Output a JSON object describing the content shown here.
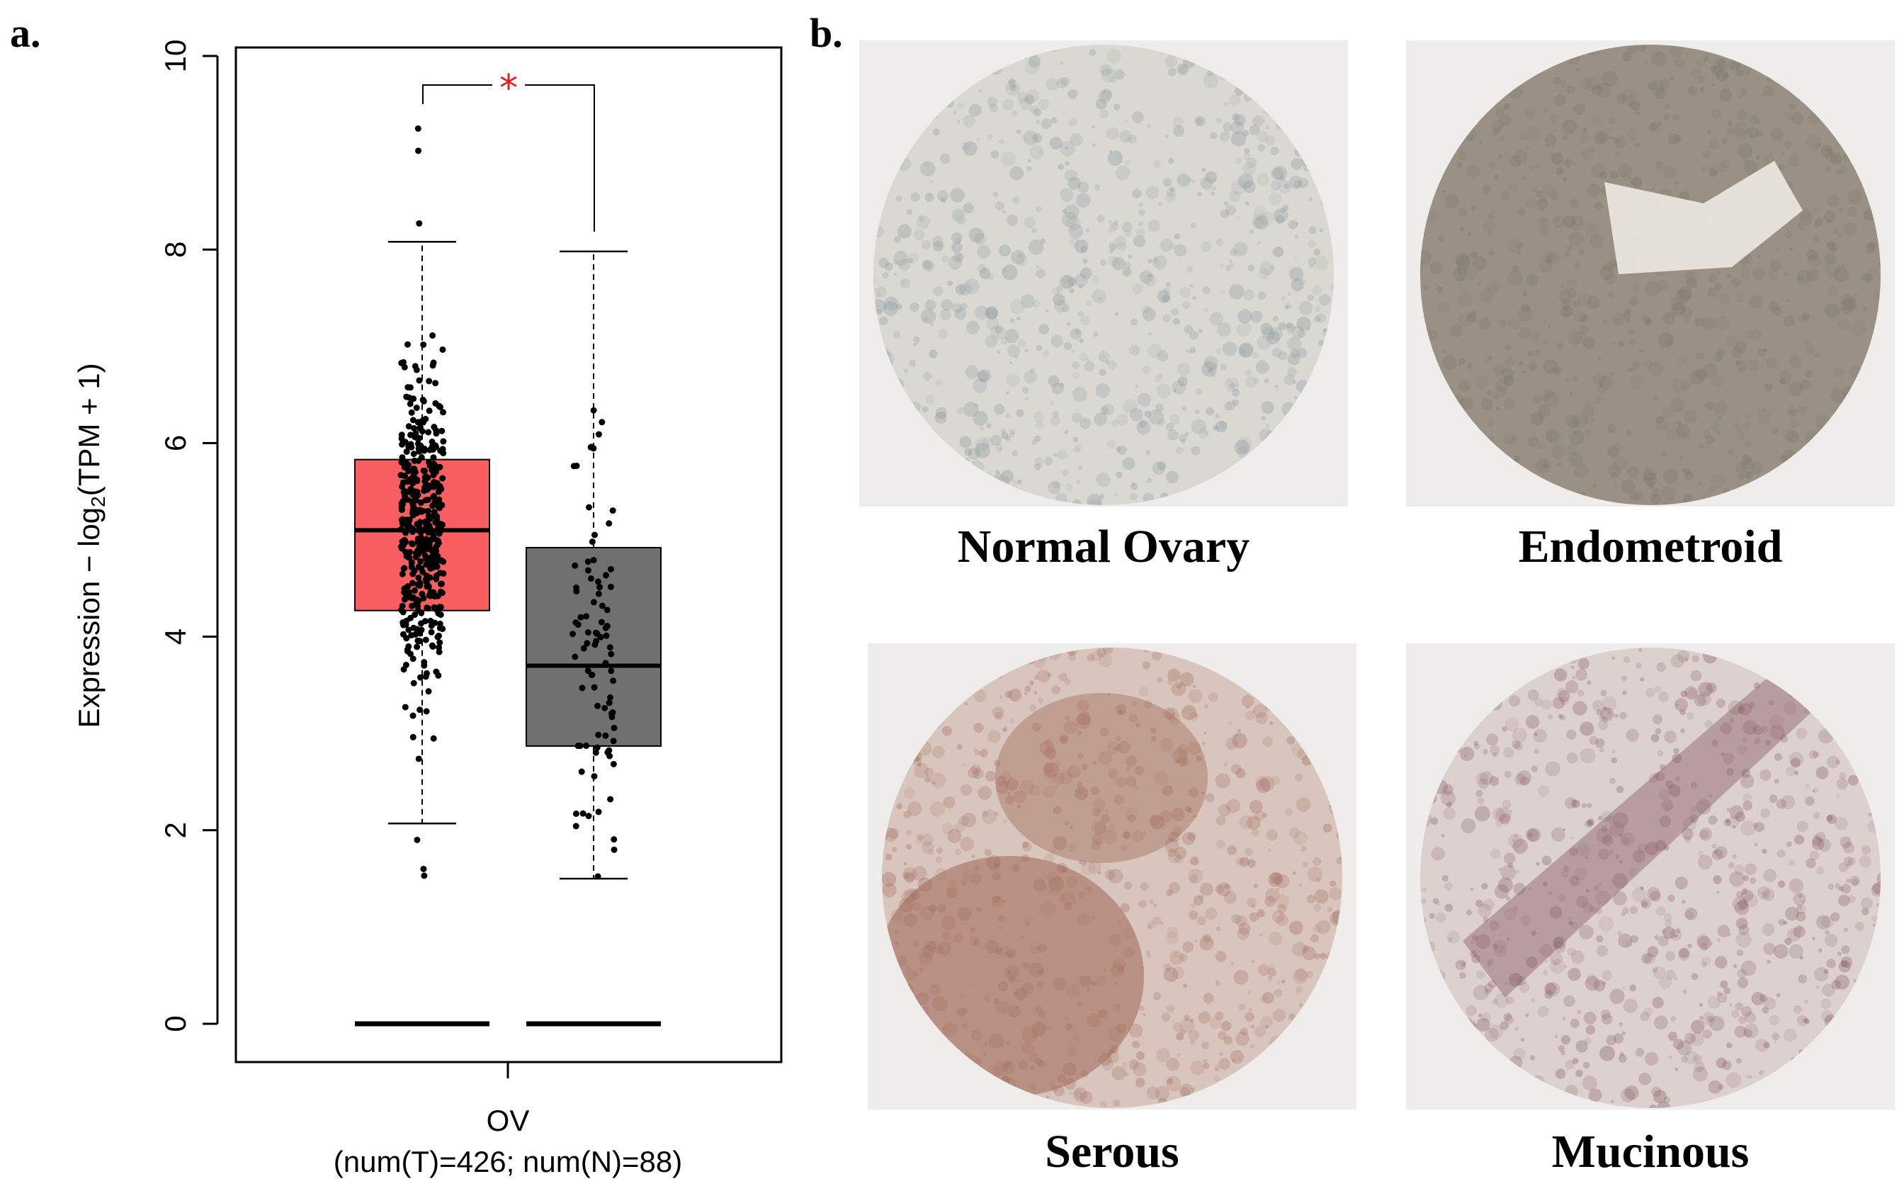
{
  "panel_a_label": "a.",
  "panel_b_label": "b.",
  "chart_data": {
    "type": "box",
    "ylabel_main": "Expression − log",
    "ylabel_sub": "2",
    "ylabel_tail": "(TPM + 1)",
    "ylim": [
      0,
      10
    ],
    "yticks": [
      0,
      2,
      4,
      6,
      8,
      10
    ],
    "xlabel": "OV",
    "xlabel_sub": "(num(T)=426; num(N)=88)",
    "significance": "*",
    "colors": {
      "tumor": "#f95f61",
      "normal": "#707070",
      "significance": "#e8191e"
    },
    "boxes": [
      {
        "group": "T",
        "n": 426,
        "whisker_low": 2.07,
        "q1": 4.27,
        "median": 5.1,
        "q3": 5.83,
        "whisker_high": 8.08,
        "outliers": [
          1.6,
          1.53,
          1.9,
          9.02,
          9.25,
          8.27
        ]
      },
      {
        "group": "N",
        "n": 88,
        "whisker_low": 1.5,
        "q1": 2.87,
        "median": 3.7,
        "q3": 4.92,
        "whisker_high": 7.98,
        "outliers": []
      }
    ],
    "zero_count_lines": [
      0,
      0
    ]
  },
  "images": [
    {
      "caption": "Normal Ovary",
      "tint": "#8f9a9e",
      "base": "#d9d8d3"
    },
    {
      "caption": "Endometroid",
      "tint": "#7f776c",
      "base": "#9a9184"
    },
    {
      "caption": "Serous",
      "tint": "#a36e5e",
      "base": "#d8c5bd"
    },
    {
      "caption": "Mucinous",
      "tint": "#8a5e63",
      "base": "#dcd1cf"
    }
  ]
}
